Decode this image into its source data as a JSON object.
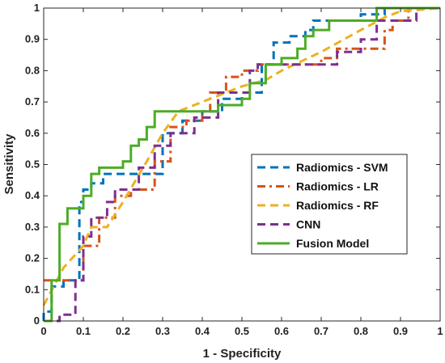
{
  "chart_data": {
    "type": "line",
    "title": "",
    "xlabel": "1 - Specificity",
    "ylabel": "Sensitivity",
    "xlim": [
      0,
      1
    ],
    "ylim": [
      0,
      1
    ],
    "xticks": [
      "0",
      "0.1",
      "0.2",
      "0.3",
      "0.4",
      "0.5",
      "0.6",
      "0.7",
      "0.8",
      "0.9",
      "1"
    ],
    "yticks": [
      "0",
      "0.1",
      "0.2",
      "0.3",
      "0.4",
      "0.5",
      "0.6",
      "0.7",
      "0.8",
      "0.9",
      "1"
    ],
    "grid": false,
    "legend_position": "right-middle",
    "series": [
      {
        "name": "Radiomics - SVM",
        "color": "#0072BD",
        "dash": "dashed",
        "x": [
          0,
          0,
          0.02,
          0.02,
          0.05,
          0.05,
          0.09,
          0.09,
          0.1,
          0.1,
          0.12,
          0.12,
          0.15,
          0.15,
          0.2,
          0.2,
          0.26,
          0.26,
          0.3,
          0.3,
          0.35,
          0.35,
          0.4,
          0.4,
          0.45,
          0.45,
          0.5,
          0.5,
          0.55,
          0.55,
          0.58,
          0.58,
          0.62,
          0.62,
          0.66,
          0.66,
          0.68,
          0.68,
          0.72,
          0.72,
          0.8,
          0.8,
          0.86,
          0.86,
          0.92,
          0.92,
          1
        ],
        "y": [
          0,
          0.03,
          0.03,
          0.11,
          0.11,
          0.13,
          0.13,
          0.38,
          0.38,
          0.42,
          0.42,
          0.44,
          0.44,
          0.47,
          0.47,
          0.47,
          0.47,
          0.47,
          0.47,
          0.6,
          0.6,
          0.64,
          0.64,
          0.67,
          0.67,
          0.71,
          0.71,
          0.73,
          0.73,
          0.82,
          0.82,
          0.89,
          0.89,
          0.91,
          0.91,
          0.93,
          0.93,
          0.96,
          0.96,
          0.96,
          0.96,
          0.98,
          0.98,
          1,
          1,
          1,
          1
        ]
      },
      {
        "name": "Radiomics - LR",
        "color": "#D95319",
        "dash": "dashdot",
        "x": [
          0,
          0.01,
          0.01,
          0.04,
          0.04,
          0.1,
          0.1,
          0.14,
          0.14,
          0.18,
          0.18,
          0.22,
          0.22,
          0.28,
          0.28,
          0.32,
          0.32,
          0.36,
          0.36,
          0.4,
          0.4,
          0.42,
          0.42,
          0.46,
          0.46,
          0.5,
          0.5,
          0.54,
          0.54,
          0.6,
          0.6,
          0.7,
          0.7,
          0.74,
          0.74,
          0.8,
          0.8,
          0.86,
          0.86,
          0.88,
          0.88,
          0.92,
          0.92,
          1
        ],
        "y": [
          0.13,
          0.13,
          0.13,
          0.13,
          0.13,
          0.13,
          0.24,
          0.24,
          0.33,
          0.33,
          0.4,
          0.4,
          0.42,
          0.42,
          0.51,
          0.51,
          0.62,
          0.62,
          0.64,
          0.64,
          0.67,
          0.67,
          0.73,
          0.73,
          0.78,
          0.78,
          0.8,
          0.8,
          0.82,
          0.82,
          0.82,
          0.82,
          0.84,
          0.84,
          0.87,
          0.87,
          0.87,
          0.87,
          0.93,
          0.93,
          0.96,
          0.96,
          1,
          1
        ]
      },
      {
        "name": "Radiomics - RF",
        "color": "#EDB120",
        "dash": "dashed",
        "x": [
          0,
          0.05,
          0.1,
          0.12,
          0.14,
          0.16,
          0.2,
          0.26,
          0.3,
          0.34,
          0.4,
          0.44,
          0.5,
          0.56,
          0.6,
          0.7,
          0.8,
          0.86,
          0.9,
          1
        ],
        "y": [
          0.05,
          0.17,
          0.24,
          0.3,
          0.3,
          0.3,
          0.38,
          0.51,
          0.6,
          0.67,
          0.7,
          0.72,
          0.75,
          0.77,
          0.8,
          0.86,
          0.93,
          0.97,
          0.99,
          1
        ]
      },
      {
        "name": "CNN",
        "color": "#7E2F8E",
        "dash": "dashed",
        "x": [
          0,
          0.04,
          0.04,
          0.08,
          0.08,
          0.1,
          0.1,
          0.12,
          0.12,
          0.16,
          0.16,
          0.18,
          0.18,
          0.24,
          0.24,
          0.28,
          0.28,
          0.32,
          0.32,
          0.38,
          0.38,
          0.44,
          0.44,
          0.52,
          0.52,
          0.54,
          0.54,
          0.64,
          0.64,
          0.74,
          0.74,
          0.8,
          0.8,
          0.84,
          0.84,
          0.88,
          0.88,
          0.94,
          0.94,
          1
        ],
        "y": [
          0,
          0,
          0.02,
          0.02,
          0.13,
          0.13,
          0.27,
          0.27,
          0.33,
          0.33,
          0.38,
          0.38,
          0.42,
          0.42,
          0.49,
          0.49,
          0.56,
          0.56,
          0.6,
          0.6,
          0.65,
          0.65,
          0.73,
          0.73,
          0.8,
          0.8,
          0.82,
          0.82,
          0.82,
          0.82,
          0.86,
          0.86,
          0.9,
          0.9,
          0.96,
          0.96,
          0.96,
          0.96,
          1,
          1
        ]
      },
      {
        "name": "Fusion Model",
        "color": "#4DAC26",
        "dash": "solid",
        "x": [
          0,
          0.02,
          0.02,
          0.04,
          0.04,
          0.06,
          0.06,
          0.1,
          0.1,
          0.12,
          0.12,
          0.14,
          0.14,
          0.2,
          0.2,
          0.22,
          0.22,
          0.24,
          0.24,
          0.26,
          0.26,
          0.28,
          0.28,
          0.44,
          0.44,
          0.5,
          0.5,
          0.52,
          0.52,
          0.56,
          0.56,
          0.6,
          0.6,
          0.64,
          0.64,
          0.66,
          0.66,
          0.68,
          0.68,
          0.72,
          0.72,
          0.84,
          0.84,
          1
        ],
        "y": [
          0,
          0,
          0.13,
          0.13,
          0.31,
          0.31,
          0.36,
          0.36,
          0.4,
          0.4,
          0.47,
          0.47,
          0.49,
          0.49,
          0.51,
          0.51,
          0.56,
          0.56,
          0.58,
          0.58,
          0.62,
          0.62,
          0.67,
          0.67,
          0.69,
          0.69,
          0.71,
          0.71,
          0.76,
          0.76,
          0.82,
          0.82,
          0.84,
          0.84,
          0.87,
          0.87,
          0.91,
          0.91,
          0.93,
          0.93,
          0.96,
          0.96,
          1,
          1
        ]
      }
    ]
  }
}
